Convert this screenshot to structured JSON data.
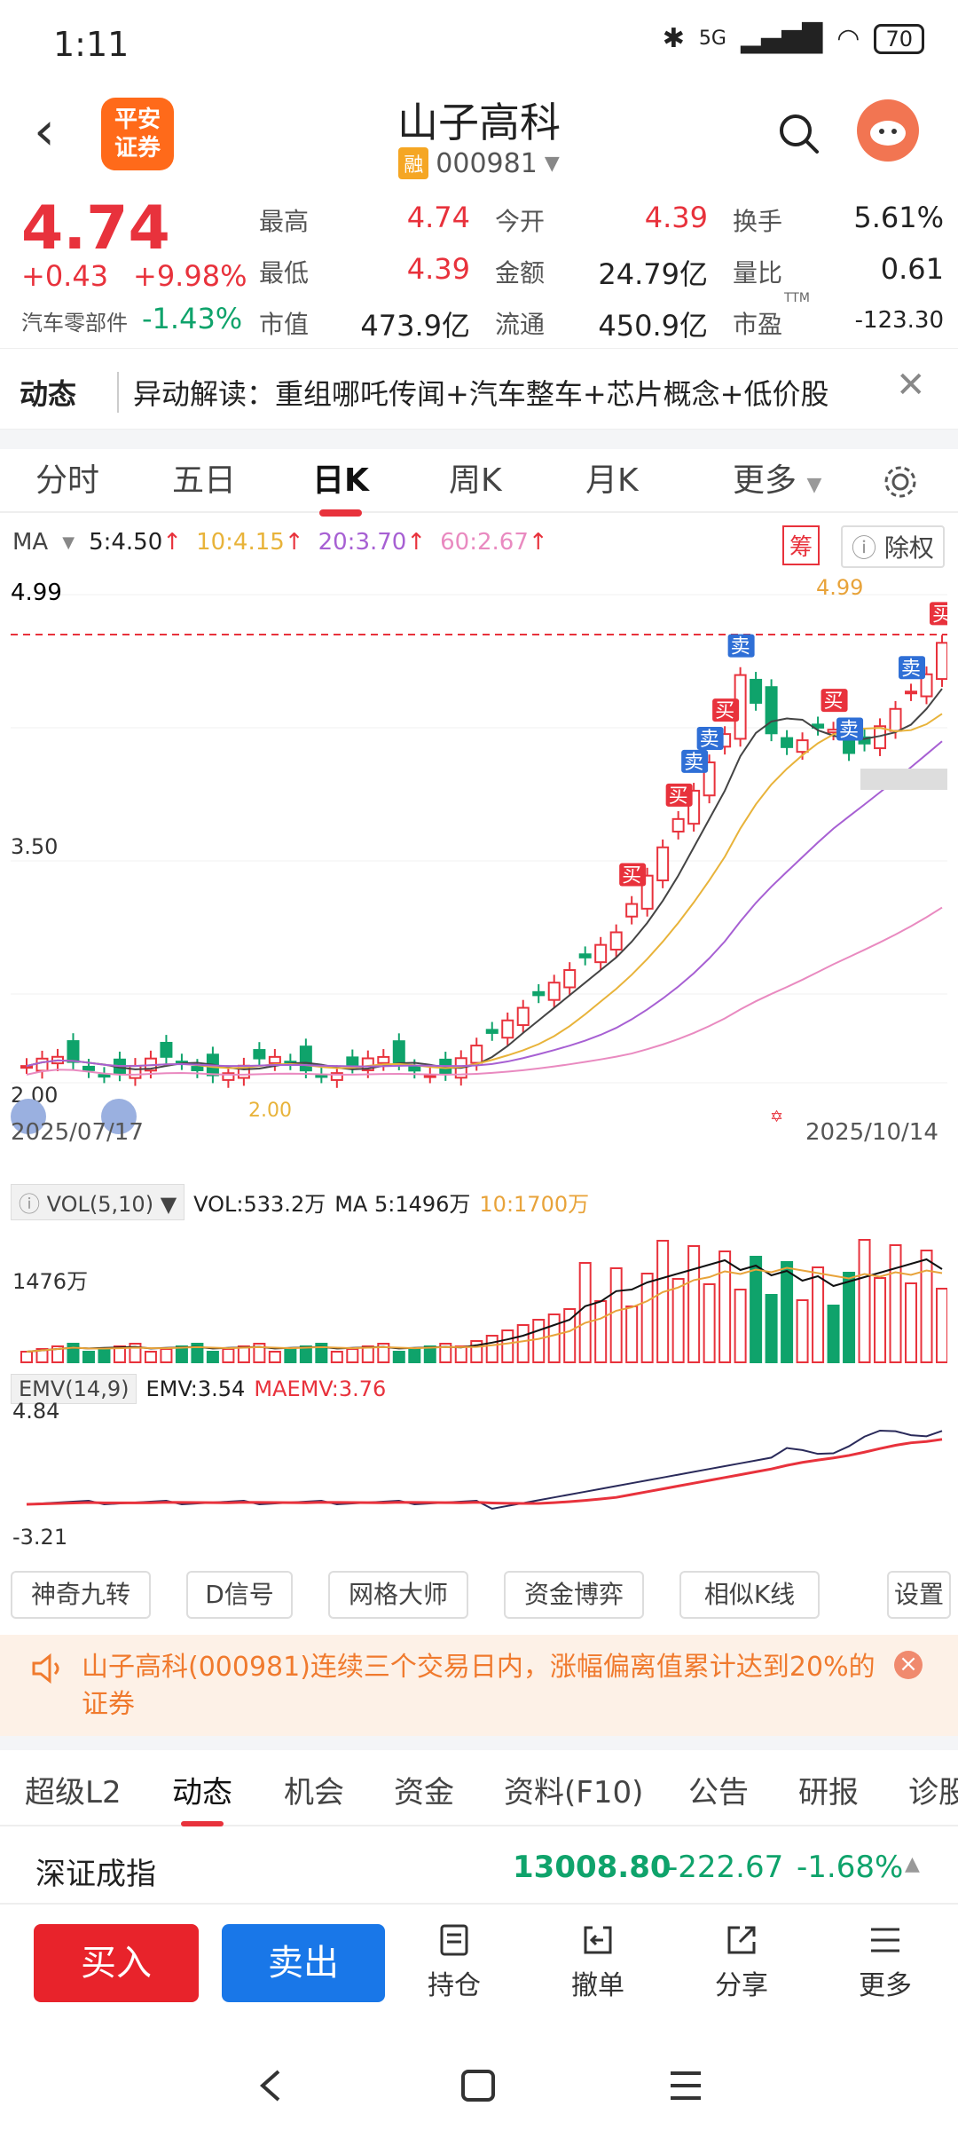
{
  "status_bar": {
    "time": "1:11",
    "network": "5G",
    "battery": "70"
  },
  "header": {
    "logo_text": "平安\n证券",
    "stock_name": "山子高科",
    "margin_badge": "融",
    "stock_code": "000981"
  },
  "quote": {
    "price": "4.74",
    "change": "+0.43",
    "change_pct": "+9.98%",
    "sector": "汽车零部件",
    "sector_pct": "-1.43%",
    "fields": [
      {
        "label": "最高",
        "value": "4.74"
      },
      {
        "label": "今开",
        "value": "4.39"
      },
      {
        "label": "换手",
        "value": "5.61%"
      },
      {
        "label": "最低",
        "value": "4.39"
      },
      {
        "label": "金额",
        "value": "24.79亿"
      },
      {
        "label": "量比",
        "value": "0.61"
      },
      {
        "label": "市值",
        "value": "473.9亿"
      },
      {
        "label": "流通",
        "value": "450.9亿"
      },
      {
        "label": "市盈",
        "value": "-123.30",
        "sup": "TTM"
      }
    ]
  },
  "news": {
    "tag": "动态",
    "text": "异动解读：重组哪吒传闻+汽车整车+芯片概念+低价股"
  },
  "chart_tabs": [
    "分时",
    "五日",
    "日K",
    "周K",
    "月K",
    "更多"
  ],
  "active_chart_tab": "日K",
  "ma": {
    "label": "MA",
    "ma5": "5:4.50",
    "ma10": "10:4.15",
    "ma20": "20:3.70",
    "ma60": "60:2.67"
  },
  "chart_buttons": {
    "chou": "筹",
    "chuquan": "除权"
  },
  "chart_data": {
    "type": "candlestick",
    "y_labels": [
      "4.99",
      "3.50",
      "2.00"
    ],
    "x_labels": [
      "2025/07/17",
      "2025/10/14"
    ],
    "high_label": "4.99",
    "low_label": "2.00",
    "trade_marks": [
      "卖",
      "卖",
      "买",
      "卖",
      "买",
      "买",
      "卖",
      "买",
      "卖",
      "买"
    ],
    "colors": {
      "up": "#e8323c",
      "down": "#0fa36b",
      "ma5": "#444444",
      "ma10": "#e8b33a",
      "ma20": "#a760d3",
      "ma60": "#e98ac0"
    }
  },
  "volume": {
    "tag": "VOL(5,10)",
    "vol": "VOL:533.2万",
    "ma5": "MA 5:1496万",
    "ma10": "10:1700万",
    "y_label": "1476万"
  },
  "emv": {
    "tag": "EMV(14,9)",
    "emv": "EMV:3.54",
    "maemv": "MAEMV:3.76",
    "y_top": "4.84",
    "y_bottom": "-3.21"
  },
  "tools": [
    "神奇九转",
    "D信号",
    "网格大师",
    "资金博弈",
    "相似K线",
    "设置"
  ],
  "alert": {
    "text": "山子高科(000981)连续三个交易日内，涨幅偏离值累计达到20%的证券"
  },
  "bottom_tabs": [
    "超级L2",
    "动态",
    "机会",
    "资金",
    "资料(F10)",
    "公告",
    "研报",
    "诊股"
  ],
  "active_bottom_tab": "动态",
  "index": {
    "name": "深证成指",
    "value": "13008.80",
    "change": "-222.67",
    "pct": "-1.68%"
  },
  "actions": {
    "buy": "买入",
    "sell": "卖出",
    "hold": "持仓",
    "cancel": "撤单",
    "share": "分享",
    "more": "更多"
  }
}
